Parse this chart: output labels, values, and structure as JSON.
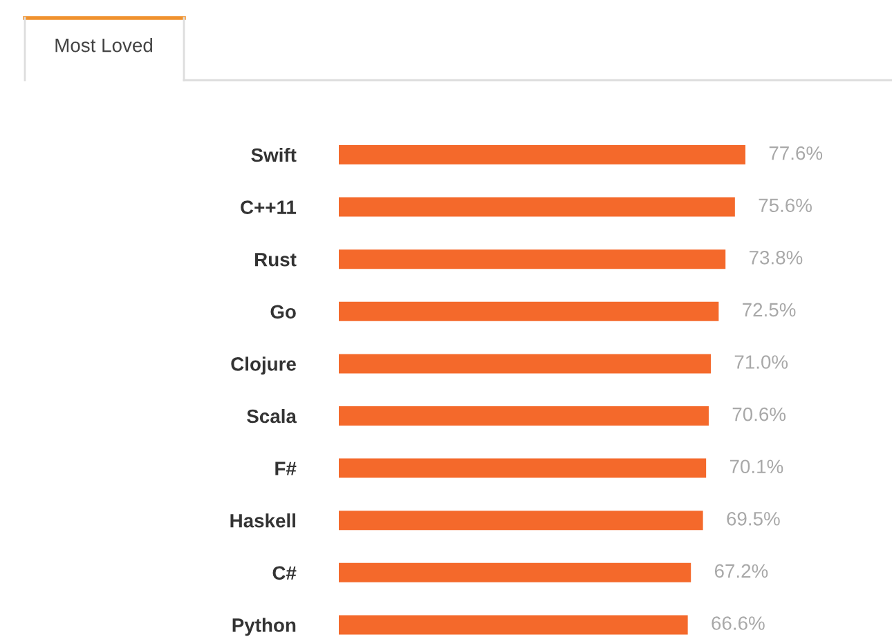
{
  "chart_data": {
    "type": "bar",
    "orientation": "horizontal",
    "title": "Most Loved",
    "categories": [
      "Swift",
      "C++11",
      "Rust",
      "Go",
      "Clojure",
      "Scala",
      "F#",
      "Haskell",
      "C#",
      "Python"
    ],
    "values": [
      77.6,
      75.6,
      73.8,
      72.5,
      71.0,
      70.6,
      70.1,
      69.5,
      67.2,
      66.6
    ],
    "value_labels": [
      "77.6%",
      "75.6%",
      "73.8%",
      "72.5%",
      "71.0%",
      "70.6%",
      "70.1%",
      "69.5%",
      "67.2%",
      "66.6%"
    ],
    "color": "#f4692b",
    "tick_labels": "y"
  }
}
